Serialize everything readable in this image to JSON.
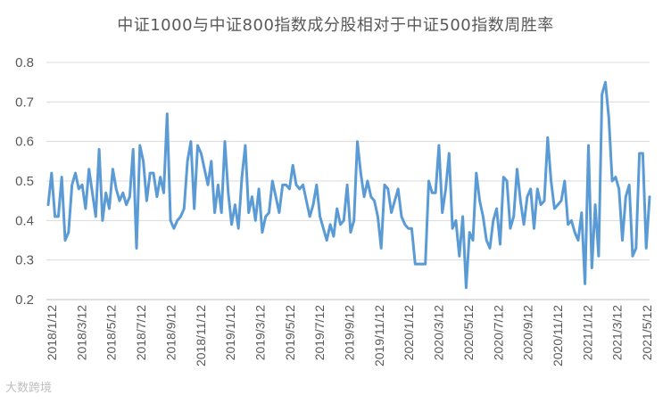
{
  "chart_data": {
    "type": "line",
    "title": "中证1000与中证800指数成分股相对于中证500指数周胜率",
    "xlabel": "",
    "ylabel": "",
    "ylim": [
      0.2,
      0.8
    ],
    "yticks": [
      "0.2",
      "0.3",
      "0.4",
      "0.5",
      "0.6",
      "0.7",
      "0.8"
    ],
    "grid": "horizontal",
    "legend": "none",
    "x_tick_labels": [
      "2018/1/12",
      "2018/3/12",
      "2018/5/12",
      "2018/7/12",
      "2018/9/12",
      "2018/11/12",
      "2019/1/12",
      "2019/3/12",
      "2019/5/12",
      "2019/7/12",
      "2019/9/12",
      "2019/11/12",
      "2020/1/12",
      "2020/3/12",
      "2020/5/12",
      "2020/7/12",
      "2020/9/12",
      "2020/11/12",
      "2021/1/12",
      "2021/3/12",
      "2021/5/12"
    ],
    "color": "#5b9bd5",
    "series": [
      {
        "values": [
          0.44,
          0.52,
          0.41,
          0.41,
          0.51,
          0.35,
          0.37,
          0.49,
          0.52,
          0.48,
          0.49,
          0.43,
          0.53,
          0.47,
          0.41,
          0.58,
          0.4,
          0.47,
          0.43,
          0.53,
          0.48,
          0.45,
          0.47,
          0.44,
          0.46,
          0.58,
          0.33,
          0.59,
          0.55,
          0.45,
          0.52,
          0.52,
          0.46,
          0.51,
          0.47,
          0.67,
          0.4,
          0.38,
          0.4,
          0.41,
          0.43,
          0.55,
          0.6,
          0.43,
          0.59,
          0.57,
          0.53,
          0.49,
          0.55,
          0.42,
          0.49,
          0.42,
          0.6,
          0.47,
          0.39,
          0.44,
          0.38,
          0.51,
          0.59,
          0.42,
          0.46,
          0.4,
          0.48,
          0.37,
          0.41,
          0.42,
          0.5,
          0.46,
          0.42,
          0.49,
          0.49,
          0.48,
          0.54,
          0.49,
          0.48,
          0.49,
          0.45,
          0.41,
          0.44,
          0.49,
          0.41,
          0.38,
          0.35,
          0.39,
          0.36,
          0.43,
          0.39,
          0.4,
          0.49,
          0.37,
          0.4,
          0.6,
          0.52,
          0.46,
          0.5,
          0.46,
          0.45,
          0.41,
          0.33,
          0.49,
          0.48,
          0.42,
          0.45,
          0.48,
          0.41,
          0.39,
          0.38,
          0.38,
          0.29,
          0.29,
          0.29,
          0.29,
          0.5,
          0.47,
          0.47,
          0.59,
          0.42,
          0.48,
          0.57,
          0.38,
          0.4,
          0.31,
          0.41,
          0.23,
          0.37,
          0.35,
          0.52,
          0.45,
          0.41,
          0.35,
          0.33,
          0.4,
          0.43,
          0.34,
          0.51,
          0.5,
          0.38,
          0.41,
          0.53,
          0.45,
          0.39,
          0.46,
          0.48,
          0.38,
          0.48,
          0.44,
          0.45,
          0.61,
          0.5,
          0.43,
          0.44,
          0.45,
          0.5,
          0.39,
          0.4,
          0.37,
          0.35,
          0.42,
          0.24,
          0.59,
          0.28,
          0.44,
          0.31,
          0.72,
          0.75,
          0.66,
          0.5,
          0.51,
          0.48,
          0.35,
          0.46,
          0.49,
          0.31,
          0.33,
          0.57,
          0.57,
          0.33,
          0.46
        ]
      }
    ]
  },
  "watermark": "大数跨境"
}
